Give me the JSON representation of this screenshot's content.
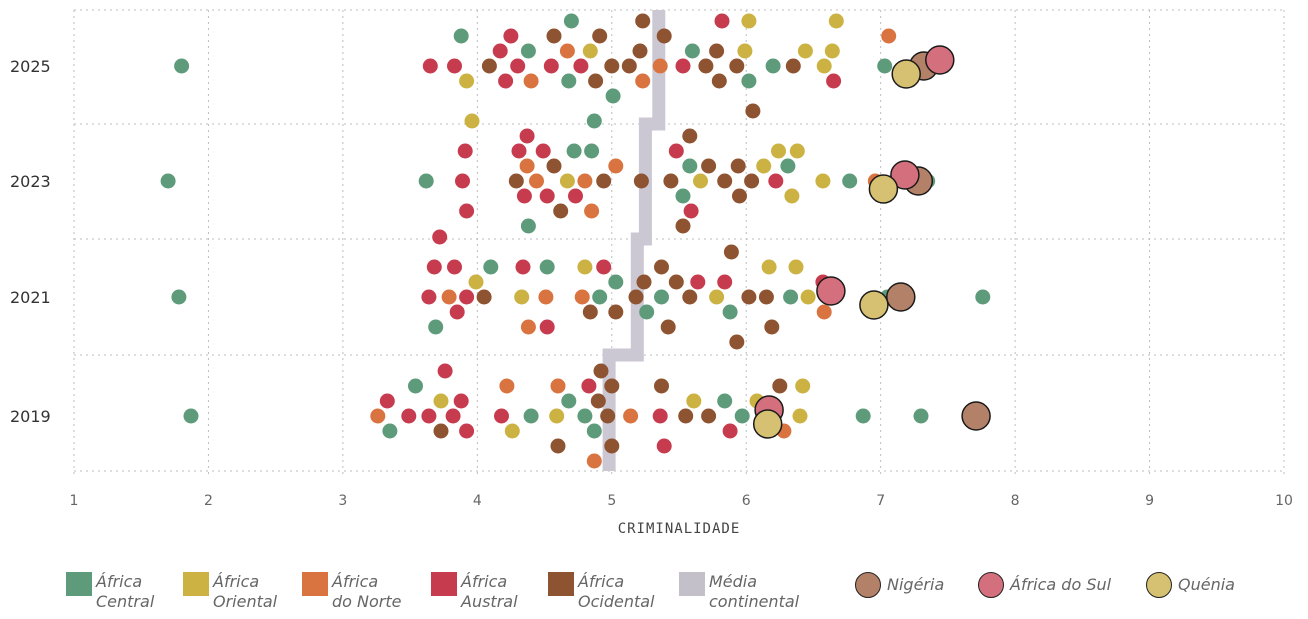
{
  "chart_data": {
    "type": "scatter",
    "xlabel": "CRIMINALIDADE",
    "xlim": [
      1,
      10
    ],
    "xticks": [
      "1",
      "2",
      "3",
      "4",
      "5",
      "6",
      "7",
      "8",
      "9",
      "10"
    ],
    "categories": [
      "2025",
      "2023",
      "2021",
      "2019"
    ],
    "colors": {
      "central": "#5e9b7a",
      "oriental": "#cbb242",
      "norte": "#d97340",
      "austral": "#c73b4e",
      "ocidental": "#8e5330",
      "media": "#cbc7d3"
    },
    "series": [
      {
        "group": "central",
        "points": {
          "2025": [
            1.8,
            3.88,
            4.38,
            4.68,
            4.7,
            5.01,
            5.6,
            6.02,
            6.2,
            7.03,
            7.47
          ],
          "2023": [
            1.7,
            3.62,
            4.38,
            4.72,
            4.85,
            4.87,
            5.53,
            5.58,
            6.31,
            6.77,
            7.35
          ],
          "2021": [
            1.78,
            3.69,
            4.1,
            4.52,
            4.91,
            5.03,
            5.26,
            5.37,
            5.88,
            6.33,
            7.05,
            7.76
          ],
          "2019": [
            1.87,
            3.35,
            3.54,
            4.4,
            4.68,
            4.8,
            4.87,
            5.84,
            5.97,
            6.87,
            7.3
          ]
        }
      },
      {
        "group": "oriental",
        "points": {
          "2025": [
            3.92,
            4.84,
            5.99,
            6.02,
            6.44,
            6.58,
            6.64,
            6.67
          ],
          "2023": [
            3.96,
            4.67,
            5.66,
            6.13,
            6.24,
            6.34,
            6.38,
            6.57
          ],
          "2021": [
            3.99,
            4.33,
            4.8,
            5.78,
            6.17,
            6.37,
            6.46
          ],
          "2019": [
            3.73,
            4.26,
            4.59,
            5.61,
            6.08,
            6.4,
            6.42
          ]
        }
      },
      {
        "group": "norte",
        "points": {
          "2025": [
            4.4,
            4.67,
            5.23,
            5.36,
            7.06
          ],
          "2023": [
            4.37,
            4.44,
            4.8,
            4.85,
            5.03,
            6.96
          ],
          "2021": [
            3.79,
            4.38,
            4.51,
            4.78,
            6.58
          ],
          "2019": [
            3.26,
            4.22,
            4.6,
            4.87,
            5.14,
            6.28
          ]
        }
      },
      {
        "group": "austral",
        "points": {
          "2025": [
            3.65,
            3.83,
            4.17,
            4.21,
            4.25,
            4.3,
            4.55,
            4.77,
            5.53,
            5.82,
            6.65
          ],
          "2023": [
            3.89,
            3.91,
            3.92,
            4.31,
            4.35,
            4.37,
            4.49,
            4.52,
            4.73,
            5.48,
            5.59,
            6.22
          ],
          "2021": [
            3.64,
            3.68,
            3.72,
            3.83,
            3.85,
            3.92,
            4.34,
            4.52,
            4.94,
            5.64,
            5.84,
            6.57
          ],
          "2019": [
            3.33,
            3.49,
            3.64,
            3.76,
            3.82,
            3.88,
            3.92,
            4.18,
            4.83,
            5.36,
            5.39,
            5.88
          ]
        }
      },
      {
        "group": "ocidental",
        "points": {
          "2025": [
            4.09,
            4.57,
            4.88,
            4.91,
            5.0,
            5.13,
            5.21,
            5.23,
            5.39,
            5.7,
            5.78,
            5.8,
            5.93,
            6.05,
            6.35
          ],
          "2023": [
            4.29,
            4.57,
            4.62,
            4.94,
            5.22,
            5.44,
            5.53,
            5.58,
            5.72,
            5.84,
            5.94,
            5.95,
            6.04
          ],
          "2021": [
            4.05,
            4.84,
            5.03,
            5.18,
            5.24,
            5.37,
            5.42,
            5.48,
            5.58,
            5.89,
            5.93,
            6.02,
            6.15,
            6.19
          ],
          "2019": [
            3.73,
            4.6,
            4.9,
            4.92,
            4.97,
            5.0,
            5.0,
            5.37,
            5.55,
            5.72,
            6.2,
            6.25
          ]
        }
      }
    ],
    "highlights": [
      {
        "name": "Nigéria",
        "color": "#b38068",
        "values": {
          "2025": 7.32,
          "2023": 7.28,
          "2021": 7.15,
          "2019": 7.71
        }
      },
      {
        "name": "África do Sul",
        "color": "#d4707d",
        "values": {
          "2025": 7.44,
          "2023": 7.18,
          "2021": 6.63,
          "2019": 6.17
        }
      },
      {
        "name": "Quénia",
        "color": "#d6c071",
        "values": {
          "2025": 7.19,
          "2023": 7.02,
          "2021": 6.95,
          "2019": 6.16
        }
      }
    ],
    "continental_average": {
      "2025": 5.35,
      "2023": 5.25,
      "2021": 5.19,
      "2019": 4.98
    },
    "legend": [
      {
        "key": "central",
        "label": "África\nCentral"
      },
      {
        "key": "oriental",
        "label": "África\nOriental"
      },
      {
        "key": "norte",
        "label": "África\ndo Norte"
      },
      {
        "key": "austral",
        "label": "África\nAustral"
      },
      {
        "key": "ocidental",
        "label": "África\nOcidental"
      },
      {
        "key": "media",
        "label": "Média\ncontinental"
      },
      {
        "key": "hl0",
        "label": "Nigéria"
      },
      {
        "key": "hl1",
        "label": "África do Sul"
      },
      {
        "key": "hl2",
        "label": "Quénia"
      }
    ]
  }
}
